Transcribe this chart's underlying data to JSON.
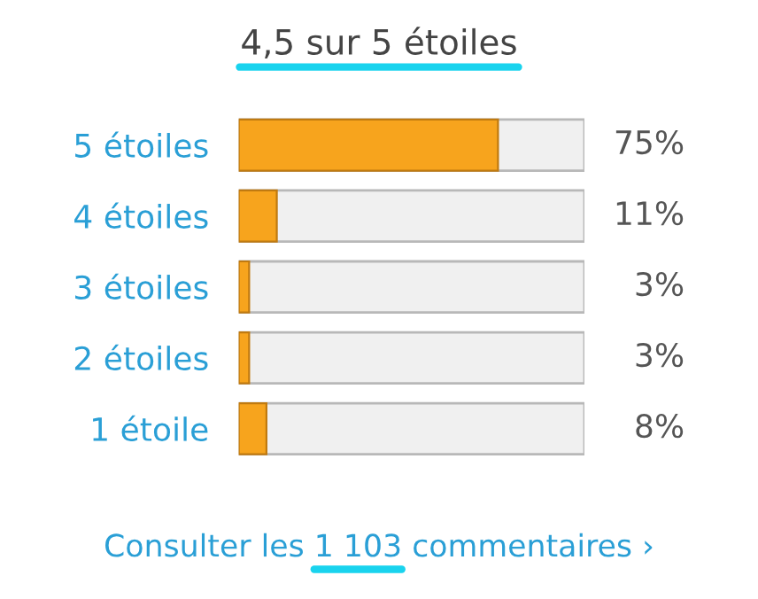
{
  "chart_data": {
    "type": "bar",
    "orientation": "horizontal",
    "title": "4,5 sur 5 étoiles",
    "categories": [
      "5 étoiles",
      "4 étoiles",
      "3 étoiles",
      "2 étoiles",
      "1 étoile"
    ],
    "values": [
      75,
      11,
      3,
      3,
      8
    ],
    "value_labels": [
      "75%",
      "11%",
      "3%",
      "3%",
      "8%"
    ],
    "color": "#f7a41d",
    "xlim": [
      0,
      100
    ],
    "tick_labels": "y",
    "grid": false,
    "legend": false,
    "annotations": [
      "Consulter les 1 103 commentaires ›"
    ]
  }
}
